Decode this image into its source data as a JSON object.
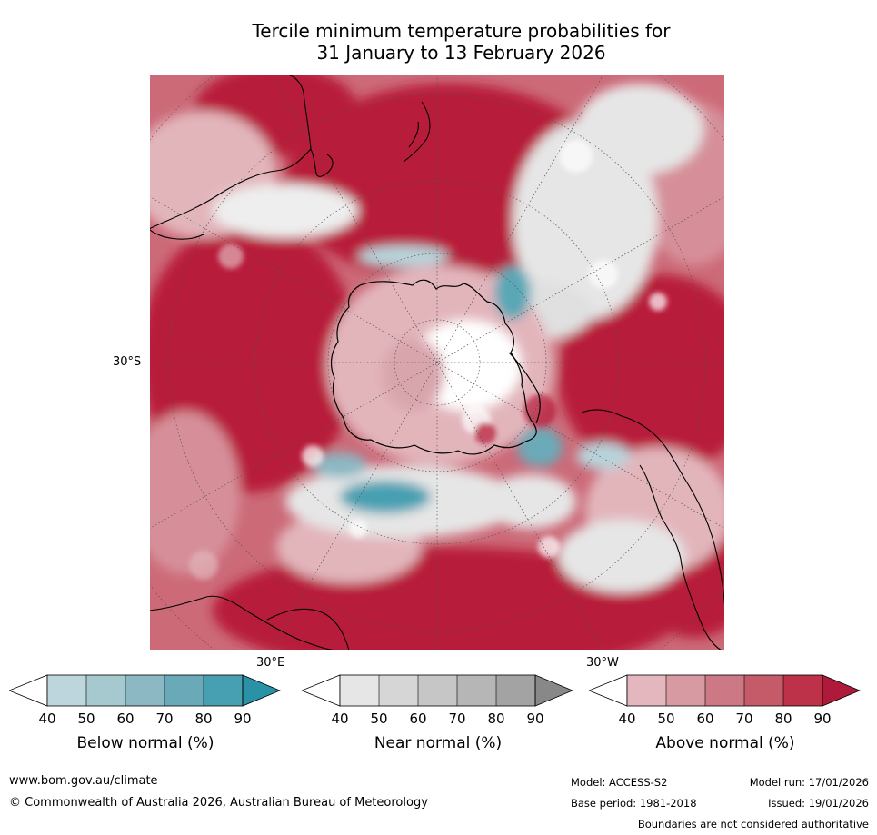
{
  "title_line1": "Tercile minimum temperature probabilities for",
  "title_line2": "31 January to 13 February 2026",
  "map": {
    "lat_label": "30°S",
    "lon_label_east": "30°E",
    "lon_label_west": "30°W",
    "colors": {
      "above_dark": "#b81c3b",
      "above_mid": "#cc6a78",
      "above_light": "#e2b5bb",
      "near": "#e6e6e6",
      "near_dark": "#a8a8a8",
      "below_light": "#b8d3da",
      "below_dark": "#2a92a6",
      "land_outline": "#000000"
    }
  },
  "colorbars": [
    {
      "label": "Below normal (%)",
      "ticks": [
        "40",
        "50",
        "60",
        "70",
        "80",
        "90"
      ],
      "colors": [
        "#bdd5dc",
        "#a6c8cf",
        "#8bb8c3",
        "#6aaab8",
        "#47a0b2",
        "#2a92a6"
      ]
    },
    {
      "label": "Near normal (%)",
      "ticks": [
        "40",
        "50",
        "60",
        "70",
        "80",
        "90"
      ],
      "colors": [
        "#e6e6e6",
        "#d6d6d6",
        "#c6c6c6",
        "#b6b6b6",
        "#a3a3a3",
        "#888888"
      ]
    },
    {
      "label": "Above normal (%)",
      "ticks": [
        "40",
        "50",
        "60",
        "70",
        "80",
        "90"
      ],
      "colors": [
        "#e3b7bd",
        "#d79aa2",
        "#cc7985",
        "#c55a68",
        "#bd3149",
        "#b01a3a"
      ]
    }
  ],
  "footer": {
    "website": "www.bom.gov.au/climate",
    "copyright": "© Commonwealth of Australia 2026, Australian Bureau of Meteorology",
    "model": "Model: ACCESS-S2",
    "base_period": "Base period: 1981-2018",
    "model_run": "Model run: 17/01/2026",
    "issued": "Issued: 19/01/2026",
    "disclaimer": "Boundaries are not considered authoritative"
  }
}
